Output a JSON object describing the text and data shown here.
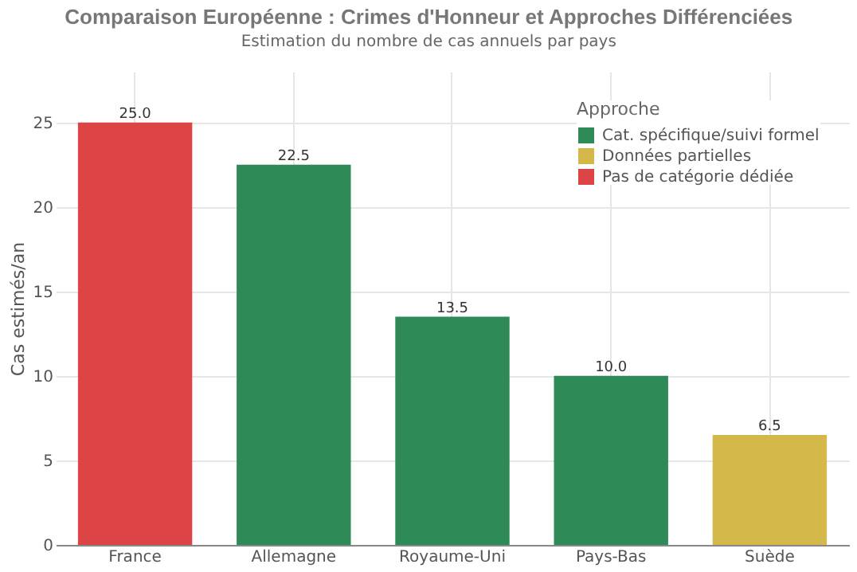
{
  "chart_data": {
    "type": "bar",
    "title": "Comparaison Européenne : Crimes d'Honneur et Approches Différenciées",
    "subtitle": "Estimation du nombre de cas annuels par pays",
    "ylabel": "Cas estimés/an",
    "legend_title": "Approche",
    "categories": [
      "France",
      "Allemagne",
      "Royaume-Uni",
      "Pays-Bas",
      "Suède"
    ],
    "series": [
      {
        "name": "Cat. spécifique/suivi formel",
        "color": "#2e8b57",
        "values": [
          null,
          22.5,
          13.5,
          10.0,
          null
        ],
        "value_labels": [
          null,
          "22.5",
          "13.5",
          "10.0",
          null
        ]
      },
      {
        "name": "Données partielles",
        "color": "#d4b94a",
        "values": [
          null,
          null,
          null,
          null,
          6.5
        ],
        "value_labels": [
          null,
          null,
          null,
          null,
          "6.5"
        ]
      },
      {
        "name": "Pas de catégorie dédiée",
        "color": "#dc4446",
        "values": [
          25.0,
          null,
          null,
          null,
          null
        ],
        "value_labels": [
          "25.0",
          null,
          null,
          null,
          null
        ]
      }
    ],
    "ylim": [
      0,
      28
    ],
    "yticks": [
      0,
      5,
      10,
      15,
      20,
      25
    ],
    "grid": true,
    "legend": "top right"
  }
}
